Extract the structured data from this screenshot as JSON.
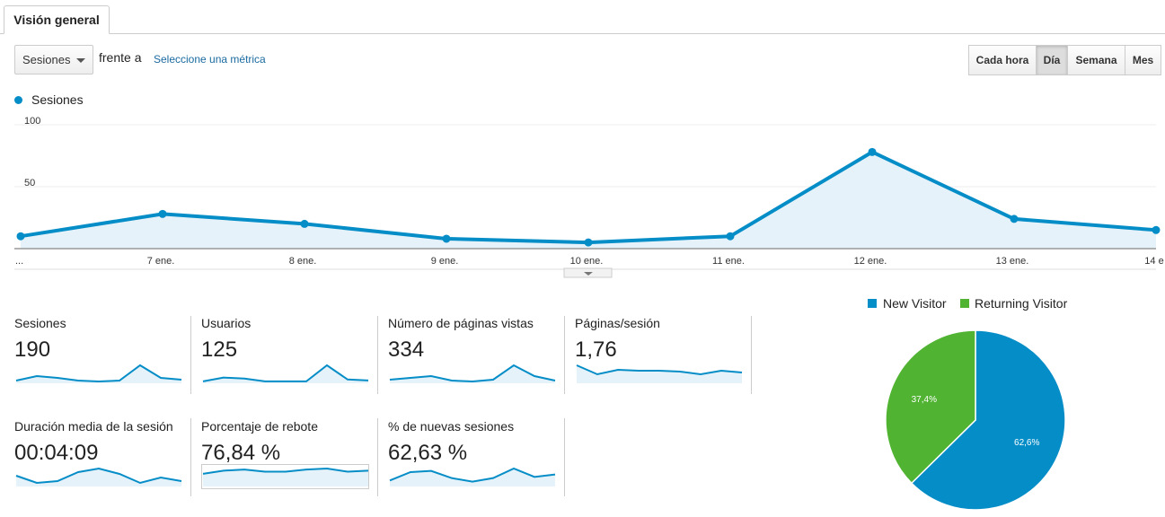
{
  "tab": {
    "label": "Visión general"
  },
  "controls": {
    "metric_select": "Sesiones",
    "versus_label": "frente a",
    "select_metric_link": "Seleccione una métrica",
    "periods": [
      "Cada hora",
      "Día",
      "Semana",
      "Mes"
    ],
    "active_period": "Día"
  },
  "chart_data": [
    {
      "type": "area",
      "series": [
        {
          "name": "Sesiones",
          "values": [
            10,
            28,
            20,
            8,
            5,
            10,
            78,
            24,
            15
          ]
        }
      ],
      "x_labels": [
        "...",
        "7 ene.",
        "8 ene.",
        "9 ene.",
        "10 ene.",
        "11 ene.",
        "12 ene.",
        "13 ene.",
        "14 e"
      ],
      "y_ticks": [
        50,
        100
      ],
      "ylim": [
        0,
        100
      ],
      "color": "#058dc7",
      "grid": true
    },
    {
      "type": "pie",
      "labels": [
        "New Visitor",
        "Returning Visitor"
      ],
      "values": [
        62.6,
        37.4
      ],
      "value_labels": [
        "62,6%",
        "37,4%"
      ],
      "colors": [
        "#058dc7",
        "#50b432"
      ],
      "legend": "top"
    }
  ],
  "metrics": [
    {
      "title": "Sesiones",
      "value": "190",
      "spark": [
        3,
        8,
        6,
        3,
        2,
        3,
        20,
        6,
        4
      ]
    },
    {
      "title": "Usuarios",
      "value": "125",
      "spark": [
        2,
        6,
        5,
        2,
        2,
        2,
        19,
        4,
        3
      ]
    },
    {
      "title": "Número de páginas vistas",
      "value": "334",
      "spark": [
        4,
        6,
        8,
        3,
        2,
        4,
        20,
        8,
        3
      ]
    },
    {
      "title": "Páginas/sesión",
      "value": "1,76",
      "spark": [
        20,
        10,
        15,
        14,
        14,
        13,
        10,
        14,
        12
      ]
    },
    {
      "title": "Duración media de la sesión",
      "value": "00:04:09",
      "spark": [
        6,
        2,
        3,
        8,
        10,
        7,
        2,
        5,
        3
      ]
    },
    {
      "title": "Porcentaje de rebote",
      "value": "76,84 %",
      "spark": [
        12,
        15,
        16,
        14,
        14,
        16,
        17,
        14,
        15
      ]
    },
    {
      "title": "% de nuevas sesiones",
      "value": "62,63 %",
      "spark": [
        5,
        12,
        13,
        7,
        4,
        7,
        15,
        8,
        10
      ]
    }
  ]
}
